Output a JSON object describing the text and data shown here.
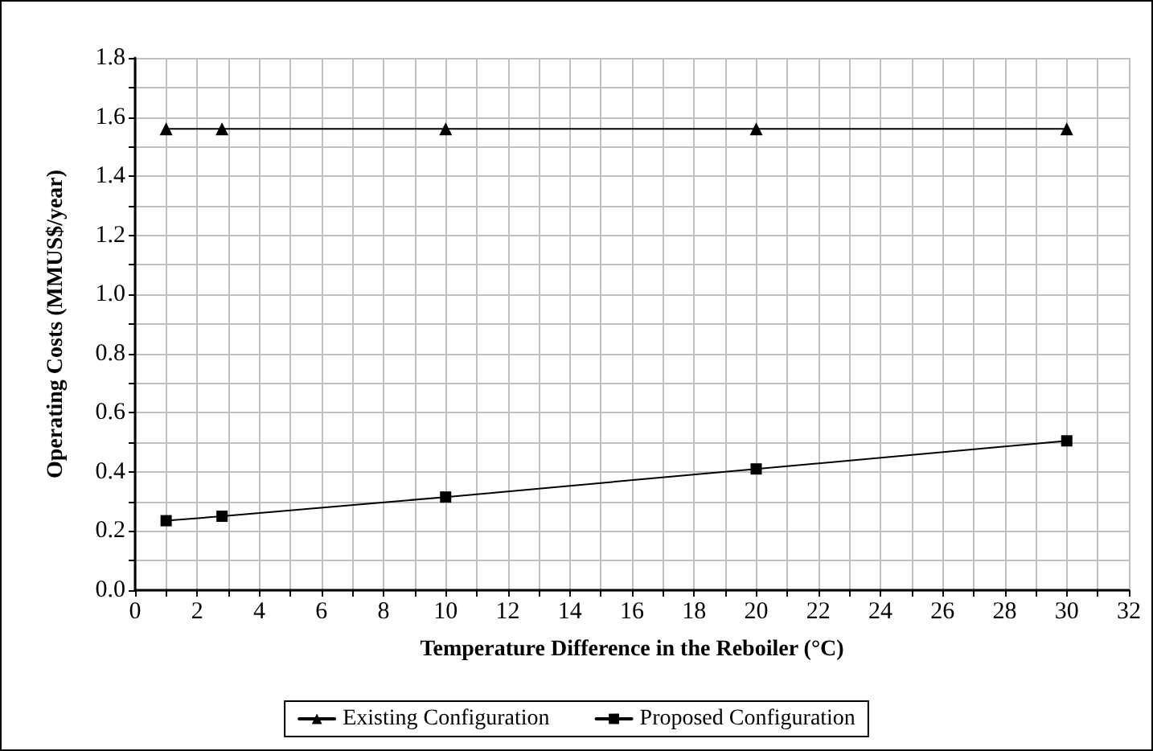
{
  "chart_data": {
    "type": "line",
    "xlabel": "Temperature Difference in the Reboiler (°C)",
    "ylabel": "Operating Costs (MMUS$/year)",
    "x": [
      1,
      2.8,
      10,
      20,
      30
    ],
    "series": [
      {
        "name": "Existing Configuration",
        "color": "#000000",
        "marker": "triangle",
        "values": [
          1.56,
          1.56,
          1.56,
          1.56,
          1.56
        ]
      },
      {
        "name": "Proposed Configuration",
        "color": "#000000",
        "marker": "square",
        "values": [
          0.235,
          0.25,
          0.315,
          0.41,
          0.505
        ]
      }
    ],
    "xlim": [
      0,
      32
    ],
    "xticks": [
      0,
      {
        "value": 1,
        "label": null
      },
      2,
      {
        "value": 3,
        "label": null
      },
      4,
      {
        "value": 5,
        "label": null
      },
      6,
      {
        "value": 7,
        "label": null
      },
      8,
      {
        "value": 9,
        "label": null
      },
      10,
      {
        "value": 11,
        "label": null
      },
      12,
      {
        "value": 13,
        "label": null
      },
      14,
      {
        "value": 15,
        "label": null
      },
      16,
      {
        "value": 17,
        "label": null
      },
      18,
      {
        "value": 19,
        "label": null
      },
      20,
      {
        "value": 21,
        "label": null
      },
      22,
      {
        "value": 23,
        "label": null
      },
      24,
      {
        "value": 25,
        "label": null
      },
      26,
      {
        "value": 27,
        "label": null
      },
      28,
      {
        "value": 29,
        "label": null
      },
      30,
      {
        "value": 31,
        "label": null
      },
      32
    ],
    "ylim": [
      0,
      1.8
    ],
    "yticks": [
      {
        "value": 0,
        "label": "0.0"
      },
      {
        "value": 0.1,
        "label": null
      },
      {
        "value": 0.2,
        "label": "0.2"
      },
      {
        "value": 0.3,
        "label": null
      },
      {
        "value": 0.4,
        "label": "0.4"
      },
      {
        "value": 0.5,
        "label": null
      },
      {
        "value": 0.6,
        "label": "0.6"
      },
      {
        "value": 0.7,
        "label": null
      },
      {
        "value": 0.8,
        "label": "0.8"
      },
      {
        "value": 0.9,
        "label": null
      },
      {
        "value": 1.0,
        "label": "1.0"
      },
      {
        "value": 1.1,
        "label": null
      },
      {
        "value": 1.2,
        "label": "1.2"
      },
      {
        "value": 1.3,
        "label": null
      },
      {
        "value": 1.4,
        "label": "1.4"
      },
      {
        "value": 1.5,
        "label": null
      },
      {
        "value": 1.6,
        "label": "1.6"
      },
      {
        "value": 1.7,
        "label": null
      },
      {
        "value": 1.8,
        "label": "1.8"
      }
    ],
    "grid": true,
    "legend": "bottom",
    "line_style": "solid"
  }
}
